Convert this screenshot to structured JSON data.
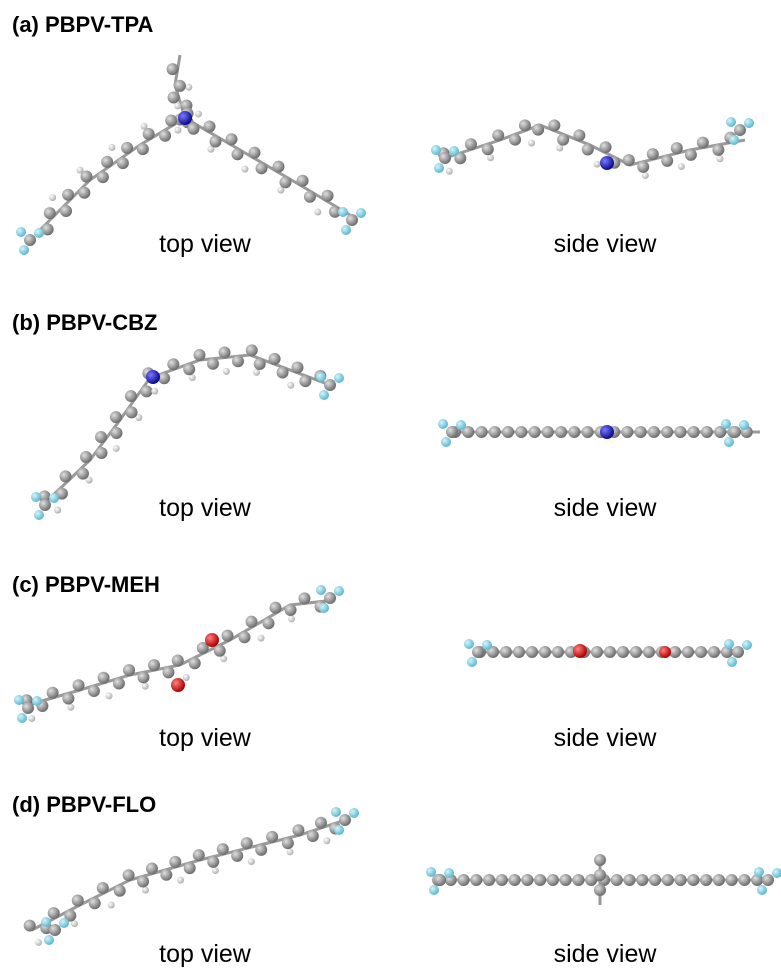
{
  "panels": [
    {
      "label": "(a) PBPV-TPA",
      "captions": [
        "top view",
        "side view"
      ]
    },
    {
      "label": "(b) PBPV-CBZ",
      "captions": [
        "top view",
        "side view"
      ]
    },
    {
      "label": "(c) PBPV-MEH",
      "captions": [
        "top view",
        "side view"
      ]
    },
    {
      "label": "(d) PBPV-FLO",
      "captions": [
        "top view",
        "side view"
      ]
    }
  ]
}
